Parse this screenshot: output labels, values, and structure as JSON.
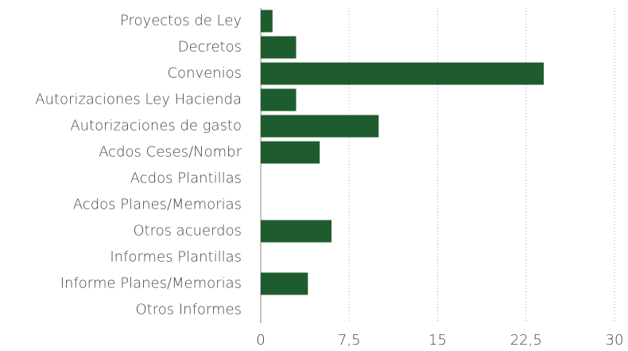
{
  "chart_data": {
    "type": "bar",
    "orientation": "horizontal",
    "categories": [
      "Proyectos de Ley",
      "Decretos",
      "Convenios",
      "Autorizaciones Ley Hacienda",
      "Autorizaciones de gasto",
      "Acdos Ceses/Nombr",
      "Acdos Plantillas",
      "Acdos Planes/Memorias",
      "Otros acuerdos",
      "Informes Plantillas",
      "Informe Planes/Memorias",
      "Otros Informes"
    ],
    "values": [
      1,
      3,
      24,
      3,
      10,
      5,
      0,
      0,
      6,
      0,
      4,
      0
    ],
    "color": "#1e5c30",
    "xlim": [
      0,
      30
    ],
    "xticks": [
      0,
      {
        "value": 7.5,
        "label": "7,5"
      },
      15,
      {
        "value": 22.5,
        "label": "22,5"
      },
      30
    ],
    "grid": true
  }
}
